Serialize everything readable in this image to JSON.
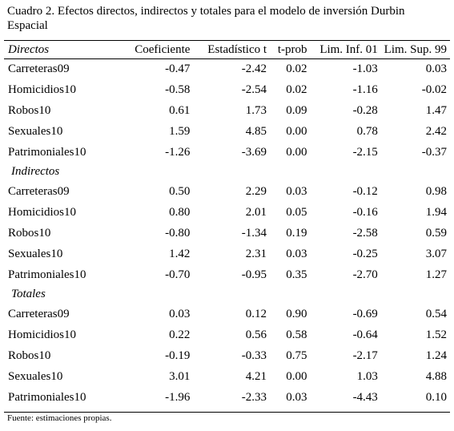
{
  "title": "Cuadro 2. Efectos directos, indirectos y totales para el modelo de inversión Durbin Espacial",
  "columns": [
    "Directos",
    "Coeficiente",
    "Estadístico t",
    "t-prob",
    "Lim. Inf. 01",
    "Lim. Sup. 99"
  ],
  "directos": [
    {
      "name": "Carreteras09",
      "coef": "-0.47",
      "t": "-2.42",
      "p": "0.02",
      "inf": "-1.03",
      "sup": "0.03"
    },
    {
      "name": "Homicidios10",
      "coef": "-0.58",
      "t": "-2.54",
      "p": "0.02",
      "inf": "-1.16",
      "sup": "-0.02"
    },
    {
      "name": "Robos10",
      "coef": "0.61",
      "t": "1.73",
      "p": "0.09",
      "inf": "-0.28",
      "sup": "1.47"
    },
    {
      "name": "Sexuales10",
      "coef": "1.59",
      "t": "4.85",
      "p": "0.00",
      "inf": "0.78",
      "sup": "2.42"
    },
    {
      "name": "Patrimoniales10",
      "coef": "-1.26",
      "t": "-3.69",
      "p": "0.00",
      "inf": "-2.15",
      "sup": "-0.37"
    }
  ],
  "indirectos_label": "Indirectos",
  "indirectos": [
    {
      "name": "Carreteras09",
      "coef": "0.50",
      "t": "2.29",
      "p": "0.03",
      "inf": "-0.12",
      "sup": "0.98"
    },
    {
      "name": "Homicidios10",
      "coef": "0.80",
      "t": "2.01",
      "p": "0.05",
      "inf": "-0.16",
      "sup": "1.94"
    },
    {
      "name": "Robos10",
      "coef": "-0.80",
      "t": "-1.34",
      "p": "0.19",
      "inf": "-2.58",
      "sup": "0.59"
    },
    {
      "name": "Sexuales10",
      "coef": "1.42",
      "t": "2.31",
      "p": "0.03",
      "inf": "-0.25",
      "sup": "3.07"
    },
    {
      "name": "Patrimoniales10",
      "coef": "-0.70",
      "t": "-0.95",
      "p": "0.35",
      "inf": "-2.70",
      "sup": "1.27"
    }
  ],
  "totales_label": "Totales",
  "totales": [
    {
      "name": "Carreteras09",
      "coef": "0.03",
      "t": "0.12",
      "p": "0.90",
      "inf": "-0.69",
      "sup": "0.54"
    },
    {
      "name": "Homicidios10",
      "coef": "0.22",
      "t": "0.56",
      "p": "0.58",
      "inf": "-0.64",
      "sup": "1.52"
    },
    {
      "name": "Robos10",
      "coef": "-0.19",
      "t": "-0.33",
      "p": "0.75",
      "inf": "-2.17",
      "sup": "1.24"
    },
    {
      "name": "Sexuales10",
      "coef": "3.01",
      "t": "4.21",
      "p": "0.00",
      "inf": "1.03",
      "sup": "4.88"
    },
    {
      "name": "Patrimoniales10",
      "coef": "-1.96",
      "t": "-2.33",
      "p": "0.03",
      "inf": "-4.43",
      "sup": "0.10"
    }
  ],
  "source": "Fuente: estimaciones propias."
}
